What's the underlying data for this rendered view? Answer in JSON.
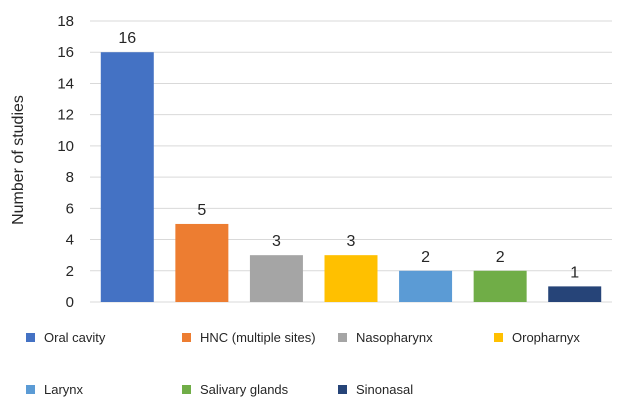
{
  "chart_data": {
    "type": "bar",
    "title": "",
    "xlabel": "",
    "ylabel": "Number of studies",
    "ylim": [
      0,
      18
    ],
    "yticks": [
      0,
      2,
      4,
      6,
      8,
      10,
      12,
      14,
      16,
      18
    ],
    "grid": true,
    "legend_position": "bottom",
    "categories": [
      "Oral cavity",
      "HNC (multiple sites)",
      "Nasopharynx",
      "Oropharnyx",
      "Larynx",
      "Salivary glands",
      "Sinonasal"
    ],
    "values": [
      16,
      5,
      3,
      3,
      2,
      2,
      1
    ],
    "colors": [
      "#4472C4",
      "#ED7D31",
      "#A5A5A5",
      "#FFC000",
      "#5B9BD5",
      "#70AD47",
      "#264478"
    ]
  }
}
